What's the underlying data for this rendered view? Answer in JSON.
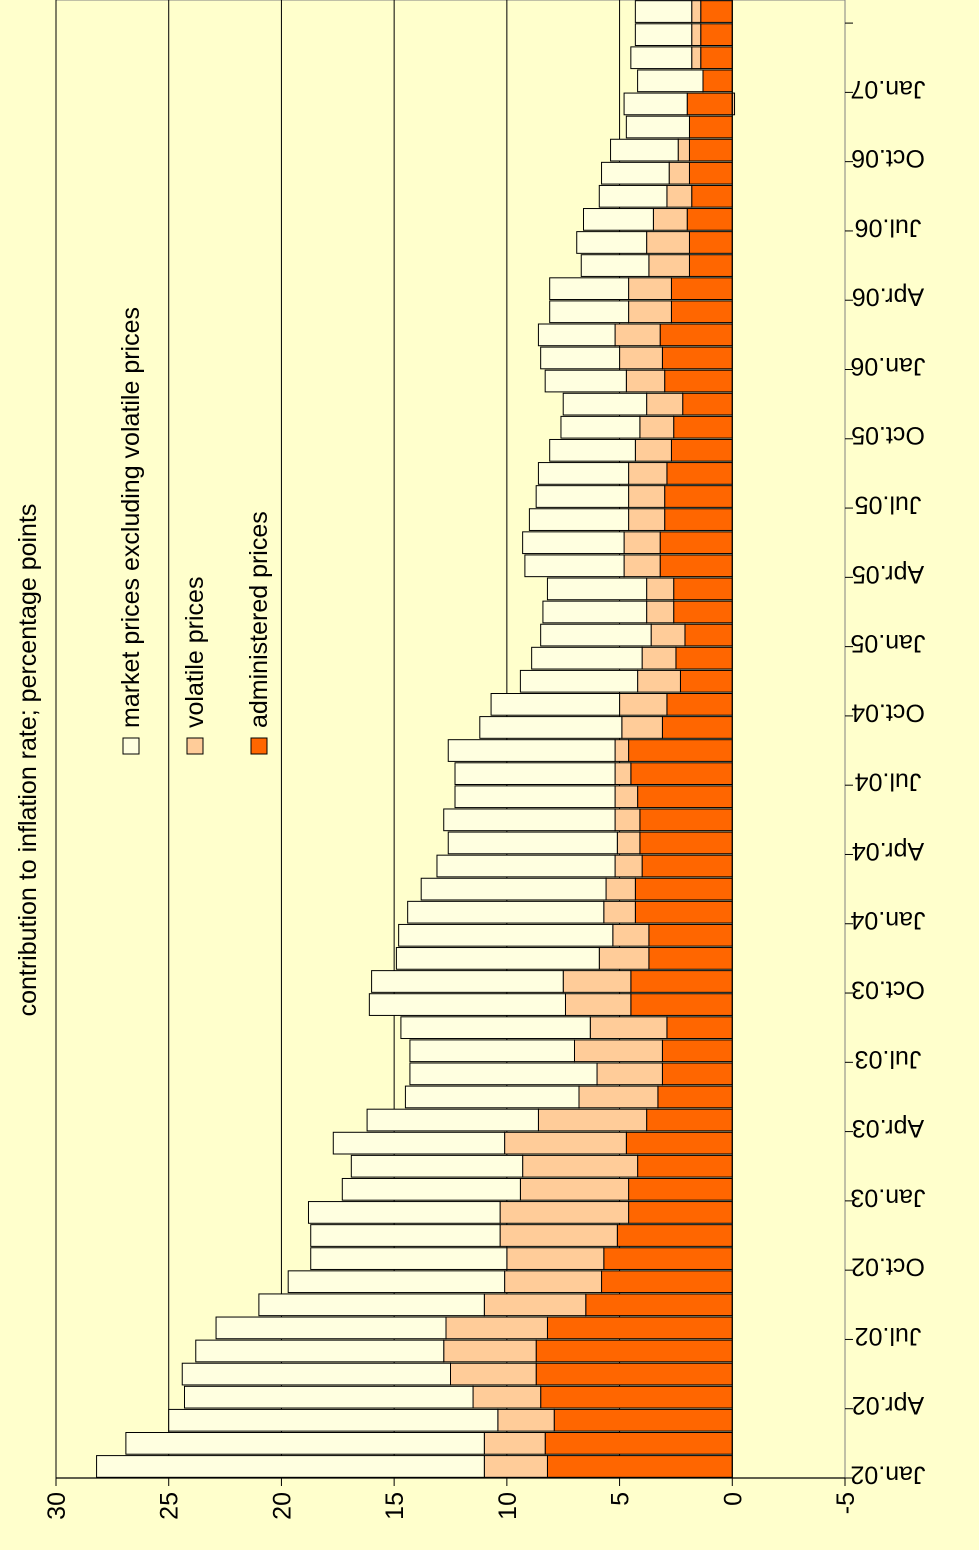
{
  "chart_data": {
    "type": "bar",
    "stacked": true,
    "orientation": "rotated",
    "ylabel": "contribution to inflation rate; percentage points",
    "ylim": [
      -5,
      30
    ],
    "yticks": [
      -5,
      0,
      5,
      10,
      15,
      20,
      25,
      30
    ],
    "grid": true,
    "legend_position": "top-right",
    "colors": {
      "plot_background": "#FFFFCC",
      "market": "#FFFFE0",
      "volatile": "#FFCC99",
      "administered": "#FF6600",
      "outline": "#000000",
      "gridline": "#000000"
    },
    "tick_labels": [
      "Jan.02",
      "Apr.02",
      "Jul.02",
      "Oct.02",
      "Jan.03",
      "Apr.03",
      "Jul.03",
      "Oct.03",
      "Jan.04",
      "Apr.04",
      "Jul.04",
      "Oct.04",
      "Jan.05",
      "Apr.05",
      "Jul.05",
      "Oct.05",
      "Jan.06",
      "Apr.06",
      "Jul.06",
      "Oct.06",
      "Jan.07"
    ],
    "months": [
      "Jan.02",
      "Feb.02",
      "Mar.02",
      "Apr.02",
      "May.02",
      "Jun.02",
      "Jul.02",
      "Aug.02",
      "Sep.02",
      "Oct.02",
      "Nov.02",
      "Dec.02",
      "Jan.03",
      "Feb.03",
      "Mar.03",
      "Apr.03",
      "May.03",
      "Jun.03",
      "Jul.03",
      "Aug.03",
      "Sep.03",
      "Oct.03",
      "Nov.03",
      "Dec.03",
      "Jan.04",
      "Feb.04",
      "Mar.04",
      "Apr.04",
      "May.04",
      "Jun.04",
      "Jul.04",
      "Aug.04",
      "Sep.04",
      "Oct.04",
      "Nov.04",
      "Dec.04",
      "Jan.05",
      "Feb.05",
      "Mar.05",
      "Apr.05",
      "May.05",
      "Jun.05",
      "Jul.05",
      "Aug.05",
      "Sep.05",
      "Oct.05",
      "Nov.05",
      "Dec.05",
      "Jan.06",
      "Feb.06",
      "Mar.06",
      "Apr.06",
      "May.06",
      "Jun.06",
      "Jul.06",
      "Aug.06",
      "Sep.06",
      "Oct.06",
      "Nov.06",
      "Dec.06",
      "Jan.07",
      "Feb.07",
      "Mar.07",
      "Apr.07"
    ],
    "series": [
      {
        "name": "administered prices",
        "values": [
          8.2,
          8.3,
          7.9,
          8.5,
          8.7,
          8.7,
          8.2,
          6.5,
          5.8,
          5.7,
          5.1,
          4.6,
          4.6,
          4.2,
          4.7,
          3.8,
          3.3,
          3.1,
          3.1,
          2.9,
          4.5,
          4.5,
          3.7,
          3.7,
          4.3,
          4.3,
          4.0,
          4.1,
          4.1,
          4.2,
          4.5,
          4.6,
          3.1,
          2.9,
          2.3,
          2.5,
          2.1,
          2.6,
          2.6,
          3.2,
          3.2,
          3.0,
          3.0,
          2.9,
          2.7,
          2.6,
          2.2,
          3.0,
          3.1,
          3.2,
          2.7,
          2.7,
          1.9,
          1.9,
          2.0,
          1.8,
          1.9,
          1.9,
          1.9,
          2.0,
          1.3,
          1.4,
          1.4,
          1.4
        ]
      },
      {
        "name": "volatile prices",
        "values": [
          2.8,
          2.7,
          2.5,
          3.0,
          3.8,
          4.1,
          4.5,
          4.5,
          4.3,
          4.3,
          5.2,
          5.7,
          4.8,
          5.1,
          5.4,
          4.8,
          3.5,
          2.9,
          3.9,
          3.4,
          2.9,
          3.0,
          2.2,
          1.6,
          1.4,
          1.3,
          1.2,
          1.0,
          1.1,
          1.0,
          0.7,
          0.6,
          1.8,
          2.1,
          1.9,
          1.5,
          1.5,
          1.2,
          1.2,
          1.6,
          1.6,
          1.6,
          1.6,
          1.7,
          1.6,
          1.5,
          1.6,
          1.7,
          1.9,
          2.0,
          1.9,
          1.9,
          1.8,
          1.9,
          1.5,
          1.1,
          0.9,
          0.5,
          0.0,
          -0.1,
          0.0,
          0.4,
          0.4,
          0.4
        ]
      },
      {
        "name": "market prices excluding volatile prices",
        "values": [
          17.2,
          15.9,
          14.6,
          12.8,
          11.9,
          11.0,
          10.2,
          10.0,
          9.6,
          8.7,
          8.4,
          8.5,
          7.9,
          7.6,
          7.6,
          7.6,
          7.7,
          8.3,
          7.3,
          8.4,
          8.7,
          8.5,
          9.0,
          9.5,
          8.7,
          8.2,
          7.9,
          7.5,
          7.6,
          7.1,
          7.1,
          7.4,
          6.3,
          5.7,
          5.2,
          4.9,
          4.9,
          4.6,
          4.4,
          4.4,
          4.5,
          4.4,
          4.1,
          4.0,
          3.8,
          3.5,
          3.7,
          3.6,
          3.5,
          3.4,
          3.5,
          3.5,
          3.0,
          3.1,
          3.1,
          3.0,
          3.0,
          3.0,
          2.8,
          2.8,
          2.9,
          2.7,
          2.5,
          2.5
        ]
      }
    ]
  }
}
